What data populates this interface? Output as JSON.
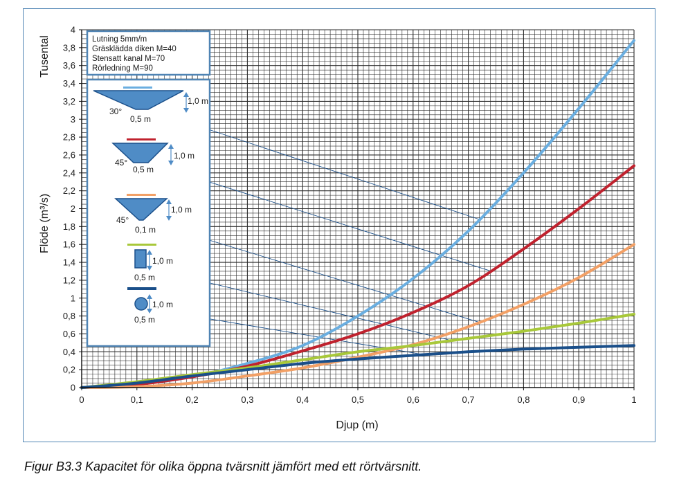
{
  "chart_data": {
    "type": "line",
    "title": "",
    "xlabel": "Djup (m)",
    "ylabel": "Flöde (m³/s)",
    "y_multiplier_label": "Tusental",
    "xlim": [
      0,
      1
    ],
    "ylim": [
      0,
      4
    ],
    "grid": true,
    "x_ticks": [
      "0",
      "0,1",
      "0,2",
      "0,3",
      "0,4",
      "0,5",
      "0,6",
      "0,7",
      "0,8",
      "0,9",
      "1"
    ],
    "y_ticks": [
      "0",
      "0,2",
      "0,4",
      "0,6",
      "0,8",
      "1",
      "1,2",
      "1,4",
      "1,6",
      "1,8",
      "2",
      "2,2",
      "2,4",
      "2,6",
      "2,8",
      "3",
      "3,2",
      "3,4",
      "3,6",
      "3,8",
      "4"
    ],
    "legend_placement": "top-left",
    "x": [
      0,
      0.1,
      0.2,
      0.3,
      0.4,
      0.5,
      0.6,
      0.7,
      0.8,
      0.9,
      1.0
    ],
    "series": [
      {
        "color": "#6aaee0",
        "values": [
          0,
          0.04,
          0.12,
          0.27,
          0.47,
          0.8,
          1.22,
          1.75,
          2.4,
          3.12,
          3.88
        ]
      },
      {
        "color": "#c0222e",
        "values": [
          0,
          0.035,
          0.12,
          0.24,
          0.41,
          0.6,
          0.84,
          1.14,
          1.55,
          2.0,
          2.48
        ]
      },
      {
        "color": "#f2a066",
        "values": [
          0,
          0.01,
          0.05,
          0.13,
          0.22,
          0.34,
          0.48,
          0.68,
          0.93,
          1.23,
          1.6
        ]
      },
      {
        "color": "#a8c83a",
        "values": [
          0,
          0.065,
          0.145,
          0.22,
          0.31,
          0.4,
          0.47,
          0.55,
          0.63,
          0.72,
          0.82
        ]
      },
      {
        "color": "#1a4f8a",
        "values": [
          0,
          0.05,
          0.13,
          0.2,
          0.27,
          0.32,
          0.36,
          0.4,
          0.43,
          0.45,
          0.47
        ]
      }
    ]
  },
  "legend": {
    "lines": [
      "Lutning 5mm/m",
      "Gräsklädda diken M=40",
      "Stensatt kanal  M=70",
      "Rörledning M=90"
    ]
  },
  "shapes": [
    {
      "color": "#6aaee0",
      "angle": "30°",
      "width": "0,5 m",
      "height": "1,0 m"
    },
    {
      "color": "#c0222e",
      "angle": "45°",
      "width": "0,5 m",
      "height": "1,0 m"
    },
    {
      "color": "#f2a066",
      "angle": "45°",
      "width": "0,1 m",
      "height": "1,0 m"
    },
    {
      "color": "#a8c83a",
      "angle": "",
      "width": "0,5 m",
      "height": "1,0 m"
    },
    {
      "color": "#1a4f8a",
      "angle": "",
      "width": "0,5 m",
      "height": "1,0 m"
    }
  ],
  "caption": "Figur B3.3  Kapacitet för olika öppna tvärsnitt jämfört med ett rörtvärsnitt."
}
